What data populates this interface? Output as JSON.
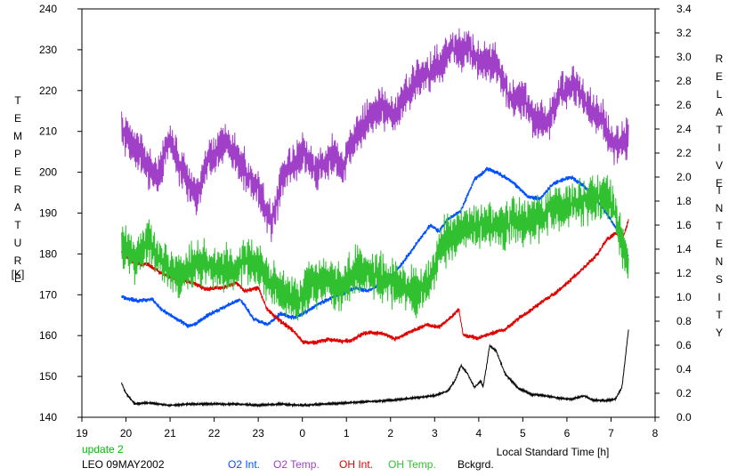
{
  "chart_data": {
    "type": "line",
    "x_title": "Local Standard Time [h]",
    "y_left_label_letters": [
      "T",
      "E",
      "M",
      "P",
      "E",
      "R",
      "A",
      "T",
      "U",
      "R",
      "E"
    ],
    "y_left_unit": "[K]",
    "y_right_label_letters_1": [
      "R",
      "E",
      "L",
      "A",
      "T",
      "I",
      "V",
      "E"
    ],
    "y_right_label_letters_2": [
      "I",
      "N",
      "T",
      "E",
      "N",
      "S",
      "I",
      "T",
      "Y"
    ],
    "x_range": [
      19,
      32
    ],
    "x_ticks": [
      19,
      20,
      21,
      22,
      23,
      24,
      25,
      26,
      27,
      28,
      29,
      30,
      31,
      32
    ],
    "x_tick_labels": [
      "19",
      "20",
      "21",
      "22",
      "23",
      "0",
      "1",
      "2",
      "3",
      "4",
      "5",
      "6",
      "7",
      "8"
    ],
    "y_left_range": [
      140,
      240
    ],
    "y_left_ticks": [
      "140",
      "150",
      "160",
      "170",
      "180",
      "190",
      "200",
      "210",
      "220",
      "230",
      "240"
    ],
    "y_right_range": [
      0.0,
      3.4
    ],
    "y_right_ticks": [
      "0.0",
      "0.2",
      "0.4",
      "0.6",
      "0.8",
      "1.0",
      "1.2",
      "1.4",
      "1.6",
      "1.8",
      "2.0",
      "2.2",
      "2.4",
      "2.6",
      "2.8",
      "3.0",
      "3.2",
      "3.4"
    ],
    "notes": {
      "update": "update 2",
      "station": "LEO 09MAY2002"
    },
    "colors": {
      "o2_int": "#0050ff",
      "o2_temp": "#a040c8",
      "oh_int": "#e00000",
      "oh_temp": "#30c030",
      "bckgrd": "#000000",
      "update_note": "#00bb00"
    },
    "series": [
      {
        "name": "O2 Int.",
        "axis": "right",
        "noise": 0.012,
        "points": [
          [
            19.9,
            1.0
          ],
          [
            20.3,
            0.97
          ],
          [
            20.6,
            0.98
          ],
          [
            20.8,
            0.9
          ],
          [
            21.1,
            0.83
          ],
          [
            21.4,
            0.76
          ],
          [
            21.6,
            0.78
          ],
          [
            21.9,
            0.86
          ],
          [
            22.3,
            0.93
          ],
          [
            22.6,
            0.98
          ],
          [
            22.9,
            0.82
          ],
          [
            23.2,
            0.77
          ],
          [
            23.5,
            0.86
          ],
          [
            23.8,
            0.83
          ],
          [
            24.0,
            0.86
          ],
          [
            24.4,
            0.95
          ],
          [
            24.8,
            1.02
          ],
          [
            25.0,
            1.04
          ],
          [
            25.2,
            1.08
          ],
          [
            25.5,
            1.05
          ],
          [
            25.8,
            1.12
          ],
          [
            26.1,
            1.2
          ],
          [
            26.3,
            1.3
          ],
          [
            26.6,
            1.45
          ],
          [
            26.9,
            1.6
          ],
          [
            27.1,
            1.55
          ],
          [
            27.3,
            1.65
          ],
          [
            27.6,
            1.72
          ],
          [
            27.9,
            1.98
          ],
          [
            28.2,
            2.07
          ],
          [
            28.5,
            2.02
          ],
          [
            28.8,
            1.95
          ],
          [
            29.1,
            1.84
          ],
          [
            29.4,
            1.82
          ],
          [
            29.7,
            1.95
          ],
          [
            30.1,
            2.0
          ],
          [
            30.4,
            1.92
          ],
          [
            30.7,
            1.8
          ],
          [
            30.9,
            1.7
          ],
          [
            31.1,
            1.58
          ],
          [
            31.25,
            1.45
          ],
          [
            31.4,
            1.34
          ]
        ]
      },
      {
        "name": "O2 Temp.",
        "axis": "left",
        "noise": 3.0,
        "points": [
          [
            19.9,
            210
          ],
          [
            20.3,
            205
          ],
          [
            20.7,
            198
          ],
          [
            21.0,
            208
          ],
          [
            21.3,
            200
          ],
          [
            21.6,
            194
          ],
          [
            21.9,
            204
          ],
          [
            22.3,
            207
          ],
          [
            22.6,
            202
          ],
          [
            23.0,
            196
          ],
          [
            23.3,
            188
          ],
          [
            23.6,
            200
          ],
          [
            24.0,
            205
          ],
          [
            24.3,
            200
          ],
          [
            24.7,
            204
          ],
          [
            24.9,
            201
          ],
          [
            25.1,
            207
          ],
          [
            25.4,
            212
          ],
          [
            25.8,
            216
          ],
          [
            26.1,
            214
          ],
          [
            26.4,
            220
          ],
          [
            26.8,
            224
          ],
          [
            27.1,
            226
          ],
          [
            27.4,
            230
          ],
          [
            27.8,
            230
          ],
          [
            28.1,
            227
          ],
          [
            28.4,
            226
          ],
          [
            28.7,
            218
          ],
          [
            29.0,
            218
          ],
          [
            29.3,
            212
          ],
          [
            29.6,
            213
          ],
          [
            29.9,
            220
          ],
          [
            30.2,
            222
          ],
          [
            30.5,
            216
          ],
          [
            30.8,
            213
          ],
          [
            31.1,
            206
          ],
          [
            31.4,
            208
          ]
        ]
      },
      {
        "name": "OH Int.",
        "axis": "right",
        "noise": 0.012,
        "points": [
          [
            19.9,
            1.37
          ],
          [
            20.2,
            1.28
          ],
          [
            20.5,
            1.27
          ],
          [
            20.8,
            1.2
          ],
          [
            21.2,
            1.15
          ],
          [
            21.5,
            1.12
          ],
          [
            21.8,
            1.07
          ],
          [
            22.2,
            1.08
          ],
          [
            22.5,
            1.12
          ],
          [
            22.7,
            1.05
          ],
          [
            23.0,
            1.08
          ],
          [
            23.2,
            0.9
          ],
          [
            23.5,
            0.8
          ],
          [
            23.8,
            0.72
          ],
          [
            24.0,
            0.63
          ],
          [
            24.3,
            0.62
          ],
          [
            24.6,
            0.65
          ],
          [
            24.9,
            0.63
          ],
          [
            25.1,
            0.64
          ],
          [
            25.4,
            0.7
          ],
          [
            25.8,
            0.7
          ],
          [
            26.1,
            0.65
          ],
          [
            26.5,
            0.72
          ],
          [
            26.8,
            0.77
          ],
          [
            27.1,
            0.75
          ],
          [
            27.3,
            0.81
          ],
          [
            27.55,
            0.9
          ],
          [
            27.65,
            0.68
          ],
          [
            28.0,
            0.66
          ],
          [
            28.3,
            0.7
          ],
          [
            28.6,
            0.73
          ],
          [
            28.9,
            0.82
          ],
          [
            29.2,
            0.9
          ],
          [
            29.5,
            0.98
          ],
          [
            29.8,
            1.05
          ],
          [
            30.1,
            1.15
          ],
          [
            30.4,
            1.25
          ],
          [
            30.7,
            1.36
          ],
          [
            30.9,
            1.48
          ],
          [
            31.1,
            1.53
          ],
          [
            31.3,
            1.52
          ],
          [
            31.4,
            1.65
          ]
        ]
      },
      {
        "name": "OH Temp.",
        "axis": "left",
        "noise": 3.5,
        "points": [
          [
            19.9,
            182
          ],
          [
            20.2,
            178
          ],
          [
            20.5,
            183
          ],
          [
            20.8,
            178
          ],
          [
            21.2,
            175
          ],
          [
            21.6,
            178
          ],
          [
            22.0,
            177
          ],
          [
            22.4,
            176
          ],
          [
            22.8,
            179
          ],
          [
            23.2,
            174
          ],
          [
            23.6,
            170
          ],
          [
            23.9,
            168
          ],
          [
            24.2,
            173
          ],
          [
            24.6,
            173
          ],
          [
            24.9,
            172
          ],
          [
            25.2,
            176
          ],
          [
            25.6,
            175
          ],
          [
            26.0,
            173
          ],
          [
            26.3,
            172
          ],
          [
            26.6,
            170
          ],
          [
            26.9,
            174
          ],
          [
            27.2,
            183
          ],
          [
            27.5,
            185
          ],
          [
            27.8,
            186
          ],
          [
            28.2,
            188
          ],
          [
            28.5,
            186
          ],
          [
            28.8,
            188
          ],
          [
            29.1,
            188
          ],
          [
            29.4,
            189
          ],
          [
            29.7,
            191
          ],
          [
            30.1,
            192
          ],
          [
            30.4,
            193
          ],
          [
            30.7,
            194
          ],
          [
            30.9,
            194
          ],
          [
            31.1,
            190
          ],
          [
            31.3,
            180
          ],
          [
            31.4,
            178
          ]
        ]
      },
      {
        "name": "Bckgrd.",
        "axis": "right",
        "noise": 0.006,
        "points": [
          [
            19.9,
            0.28
          ],
          [
            20.0,
            0.2
          ],
          [
            20.2,
            0.11
          ],
          [
            20.5,
            0.12
          ],
          [
            21.0,
            0.1
          ],
          [
            21.5,
            0.11
          ],
          [
            22.0,
            0.11
          ],
          [
            22.5,
            0.11
          ],
          [
            23.0,
            0.1
          ],
          [
            23.5,
            0.11
          ],
          [
            24.0,
            0.1
          ],
          [
            24.5,
            0.11
          ],
          [
            25.0,
            0.12
          ],
          [
            25.5,
            0.13
          ],
          [
            26.0,
            0.14
          ],
          [
            26.5,
            0.16
          ],
          [
            27.0,
            0.18
          ],
          [
            27.3,
            0.22
          ],
          [
            27.45,
            0.3
          ],
          [
            27.6,
            0.43
          ],
          [
            27.75,
            0.36
          ],
          [
            27.9,
            0.25
          ],
          [
            28.05,
            0.3
          ],
          [
            28.1,
            0.25
          ],
          [
            28.25,
            0.6
          ],
          [
            28.4,
            0.55
          ],
          [
            28.6,
            0.36
          ],
          [
            28.9,
            0.24
          ],
          [
            29.2,
            0.19
          ],
          [
            29.5,
            0.18
          ],
          [
            29.8,
            0.16
          ],
          [
            30.1,
            0.15
          ],
          [
            30.4,
            0.18
          ],
          [
            30.6,
            0.14
          ],
          [
            30.9,
            0.14
          ],
          [
            31.1,
            0.15
          ],
          [
            31.25,
            0.25
          ],
          [
            31.4,
            0.74
          ]
        ]
      }
    ]
  }
}
